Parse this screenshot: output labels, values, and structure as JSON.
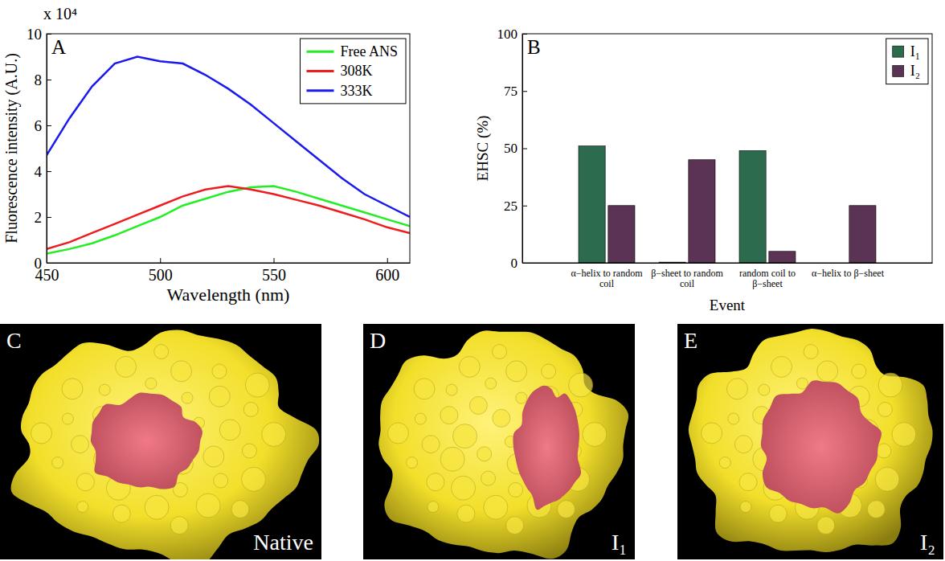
{
  "chart_data": [
    {
      "type": "line",
      "panel_label": "A",
      "annotations": [
        "x 10⁴"
      ],
      "x_label": "Wavelength (nm)",
      "y_label": "Fluorescence intensity (A.U.)",
      "x": [
        450,
        460,
        470,
        480,
        490,
        500,
        510,
        520,
        530,
        540,
        550,
        560,
        570,
        580,
        590,
        600,
        610
      ],
      "xlim": [
        450,
        610
      ],
      "xticks": [
        450,
        500,
        550,
        600
      ],
      "ylim": [
        0,
        10
      ],
      "yticks": [
        0,
        2,
        4,
        6,
        8,
        10
      ],
      "legend": "upper right",
      "series": [
        {
          "name": "Free ANS",
          "color": "#22ee22",
          "values": [
            0.4,
            0.6,
            0.85,
            1.2,
            1.6,
            2.0,
            2.5,
            2.8,
            3.1,
            3.3,
            3.35,
            3.1,
            2.8,
            2.5,
            2.2,
            1.9,
            1.6
          ]
        },
        {
          "name": "308K",
          "color": "#ee1c1c",
          "values": [
            0.6,
            0.9,
            1.3,
            1.7,
            2.1,
            2.5,
            2.9,
            3.2,
            3.35,
            3.2,
            3.0,
            2.75,
            2.5,
            2.2,
            1.9,
            1.55,
            1.3
          ]
        },
        {
          "name": "333K",
          "color": "#1a1aee",
          "values": [
            4.7,
            6.3,
            7.7,
            8.7,
            9.0,
            8.8,
            8.7,
            8.2,
            7.6,
            6.9,
            6.1,
            5.3,
            4.5,
            3.7,
            3.0,
            2.5,
            2.0
          ]
        }
      ]
    },
    {
      "type": "bar",
      "panel_label": "B",
      "x_label": "Event",
      "y_label": "EHSC (%)",
      "categories": [
        "α−helix to random coil",
        "β−sheet to random coil",
        "random coil to β−sheet",
        "α−helix to β−sheet"
      ],
      "ylim": [
        0,
        100
      ],
      "yticks": [
        0,
        25,
        50,
        75,
        100
      ],
      "legend": "upper right",
      "series": [
        {
          "name": "I₁",
          "color": "#2d6b4e",
          "values": [
            51,
            0.3,
            49,
            0
          ]
        },
        {
          "name": "I₂",
          "color": "#5b3354",
          "values": [
            25,
            45,
            5,
            25
          ]
        }
      ]
    }
  ],
  "images": [
    {
      "letter": "C",
      "caption": "Native"
    },
    {
      "letter": "D",
      "caption": "I₁"
    },
    {
      "letter": "E",
      "caption": "I₂"
    }
  ]
}
